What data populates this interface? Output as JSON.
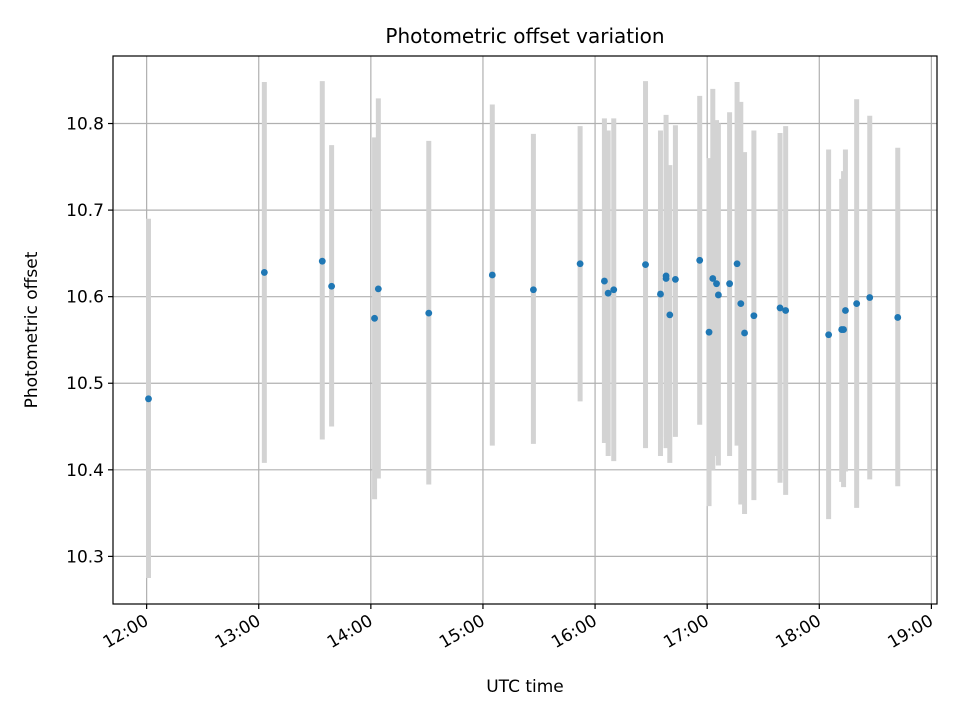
{
  "chart_data": {
    "type": "scatter",
    "title": "Photometric offset variation",
    "xlabel": "UTC time",
    "ylabel": "Photometric offset",
    "xlim": [
      "11:42",
      "19:03"
    ],
    "ylim": [
      10.245,
      10.878
    ],
    "x_ticks": [
      "12:00",
      "13:00",
      "14:00",
      "15:00",
      "16:00",
      "17:00",
      "18:00",
      "19:00"
    ],
    "y_ticks": [
      10.3,
      10.4,
      10.5,
      10.6,
      10.7,
      10.8
    ],
    "y_tick_labels": [
      "10.3",
      "10.4",
      "10.5",
      "10.6",
      "10.7",
      "10.8"
    ],
    "grid": true,
    "point_color": "#1f77b4",
    "errorbar_color": "#d3d3d3",
    "series": [
      {
        "points": [
          {
            "x": "12:01",
            "y": 10.482,
            "low": 10.275,
            "high": 10.69
          },
          {
            "x": "13:03",
            "y": 10.628,
            "low": 10.408,
            "high": 10.848
          },
          {
            "x": "13:34",
            "y": 10.641,
            "low": 10.435,
            "high": 10.849
          },
          {
            "x": "13:39",
            "y": 10.612,
            "low": 10.45,
            "high": 10.775
          },
          {
            "x": "14:02",
            "y": 10.575,
            "low": 10.366,
            "high": 10.784
          },
          {
            "x": "14:04",
            "y": 10.609,
            "low": 10.39,
            "high": 10.829
          },
          {
            "x": "14:31",
            "y": 10.581,
            "low": 10.383,
            "high": 10.78
          },
          {
            "x": "15:05",
            "y": 10.625,
            "low": 10.428,
            "high": 10.822
          },
          {
            "x": "15:27",
            "y": 10.608,
            "low": 10.43,
            "high": 10.788
          },
          {
            "x": "15:52",
            "y": 10.638,
            "low": 10.479,
            "high": 10.797
          },
          {
            "x": "16:05",
            "y": 10.618,
            "low": 10.431,
            "high": 10.806
          },
          {
            "x": "16:07",
            "y": 10.604,
            "low": 10.416,
            "high": 10.792
          },
          {
            "x": "16:10",
            "y": 10.608,
            "low": 10.41,
            "high": 10.806
          },
          {
            "x": "16:27",
            "y": 10.637,
            "low": 10.425,
            "high": 10.849
          },
          {
            "x": "16:35",
            "y": 10.603,
            "low": 10.416,
            "high": 10.792
          },
          {
            "x": "16:38",
            "y": 10.624,
            "low": 10.438,
            "high": 10.81
          },
          {
            "x": "16:38",
            "y": 10.621,
            "low": 10.425,
            "high": 10.798
          },
          {
            "x": "16:40",
            "y": 10.579,
            "low": 10.408,
            "high": 10.752
          },
          {
            "x": "16:43",
            "y": 10.62,
            "low": 10.438,
            "high": 10.798
          },
          {
            "x": "16:56",
            "y": 10.642,
            "low": 10.452,
            "high": 10.832
          },
          {
            "x": "17:01",
            "y": 10.559,
            "low": 10.358,
            "high": 10.76
          },
          {
            "x": "17:03",
            "y": 10.621,
            "low": 10.4,
            "high": 10.84
          },
          {
            "x": "17:05",
            "y": 10.615,
            "low": 10.416,
            "high": 10.804
          },
          {
            "x": "17:06",
            "y": 10.602,
            "low": 10.405,
            "high": 10.8
          },
          {
            "x": "17:12",
            "y": 10.615,
            "low": 10.416,
            "high": 10.813
          },
          {
            "x": "17:16",
            "y": 10.638,
            "low": 10.428,
            "high": 10.848
          },
          {
            "x": "17:18",
            "y": 10.592,
            "low": 10.36,
            "high": 10.825
          },
          {
            "x": "17:20",
            "y": 10.558,
            "low": 10.349,
            "high": 10.767
          },
          {
            "x": "17:25",
            "y": 10.578,
            "low": 10.365,
            "high": 10.792
          },
          {
            "x": "17:39",
            "y": 10.587,
            "low": 10.385,
            "high": 10.789
          },
          {
            "x": "17:42",
            "y": 10.584,
            "low": 10.371,
            "high": 10.797
          },
          {
            "x": "18:05",
            "y": 10.556,
            "low": 10.343,
            "high": 10.77
          },
          {
            "x": "18:12",
            "y": 10.562,
            "low": 10.386,
            "high": 10.736
          },
          {
            "x": "18:13",
            "y": 10.562,
            "low": 10.38,
            "high": 10.745
          },
          {
            "x": "18:14",
            "y": 10.584,
            "low": 10.398,
            "high": 10.77
          },
          {
            "x": "18:20",
            "y": 10.592,
            "low": 10.356,
            "high": 10.828
          },
          {
            "x": "18:27",
            "y": 10.599,
            "low": 10.389,
            "high": 10.809
          },
          {
            "x": "18:42",
            "y": 10.576,
            "low": 10.381,
            "high": 10.772
          }
        ]
      }
    ]
  }
}
